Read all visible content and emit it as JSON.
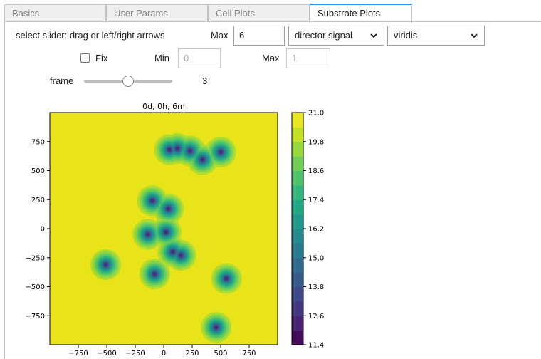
{
  "tabs": [
    "Basics",
    "User Params",
    "Cell Plots",
    "Substrate Plots"
  ],
  "active_tab": "Substrate Plots",
  "controls": {
    "slider_hint": "select slider: drag or left/right arrows",
    "max_label": "Max",
    "max_value": "6",
    "substrate_select": "director signal",
    "colormap_select": "viridis",
    "fix_label": "Fix",
    "fix_checked": false,
    "min_label": "Min",
    "min_placeholder": "0",
    "max2_label": "Max",
    "max2_placeholder": "1",
    "frame_label": "frame",
    "frame_value": "3",
    "frame_min": 0,
    "frame_max": 6
  },
  "colors": {
    "tab_accent": "#2196f3",
    "viridis": [
      "#440154",
      "#482475",
      "#414487",
      "#355f8d",
      "#2a788e",
      "#21918c",
      "#22a884",
      "#44bf70",
      "#7ad151",
      "#bddf26",
      "#fde725"
    ]
  },
  "chart_data": {
    "type": "heatmap",
    "title": "0d, 0h, 6m",
    "colormap": "viridis",
    "xlim": [
      -1000,
      1000
    ],
    "ylim": [
      -1000,
      1000
    ],
    "xticks": [
      "−750",
      "−500",
      "−250",
      "0",
      "250",
      "500",
      "750"
    ],
    "xtick_values": [
      -750,
      -500,
      -250,
      0,
      250,
      500,
      750
    ],
    "yticks": [
      "750",
      "500",
      "250",
      "0",
      "−250",
      "−500",
      "−750"
    ],
    "ytick_values": [
      750,
      500,
      250,
      0,
      -250,
      -500,
      -750
    ],
    "colorbar_range": [
      11.4,
      21.0
    ],
    "colorbar_ticks": [
      "21.0",
      "19.8",
      "18.6",
      "17.4",
      "16.2",
      "15.0",
      "13.8",
      "12.6",
      "11.4"
    ],
    "colorbar_tick_values": [
      21.0,
      19.8,
      18.6,
      17.4,
      16.2,
      15.0,
      13.8,
      12.6,
      11.4
    ],
    "levels": 16,
    "cells": [
      {
        "x": 50,
        "y": 680
      },
      {
        "x": 120,
        "y": 690
      },
      {
        "x": 230,
        "y": 670
      },
      {
        "x": 340,
        "y": 595
      },
      {
        "x": 500,
        "y": 660
      },
      {
        "x": -100,
        "y": 240
      },
      {
        "x": 40,
        "y": 170
      },
      {
        "x": -140,
        "y": -50
      },
      {
        "x": 20,
        "y": -30
      },
      {
        "x": 80,
        "y": -200
      },
      {
        "x": 150,
        "y": -230
      },
      {
        "x": -80,
        "y": -390
      },
      {
        "x": -510,
        "y": -310
      },
      {
        "x": 550,
        "y": -430
      },
      {
        "x": 460,
        "y": -850
      }
    ]
  }
}
